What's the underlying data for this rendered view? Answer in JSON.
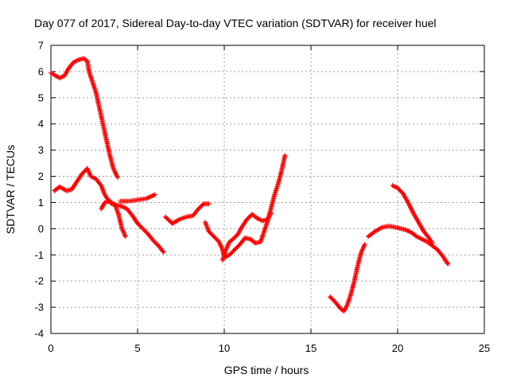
{
  "chart_data": {
    "type": "scatter",
    "title": "Day 077 of 2017, Sidereal Day-to-day VTEC variation (SDTVAR) for receiver huel",
    "xlabel": "GPS time / hours",
    "ylabel": "SDTVAR / TECUs",
    "xlim": [
      0,
      25
    ],
    "ylim": [
      -4,
      7
    ],
    "xticks": [
      "0",
      "5",
      "10",
      "15",
      "20",
      "25"
    ],
    "yticks": [
      "-4",
      "-3",
      "-2",
      "-1",
      "0",
      "1",
      "2",
      "3",
      "4",
      "5",
      "6",
      "7"
    ],
    "grid": true,
    "color": "#ff0000",
    "marker": "plus",
    "series": [
      {
        "values": [
          [
            0.0,
            5.95
          ],
          [
            0.25,
            5.85
          ],
          [
            0.5,
            5.75
          ],
          [
            0.8,
            5.85
          ],
          [
            1.0,
            6.1
          ],
          [
            1.3,
            6.35
          ],
          [
            1.6,
            6.45
          ],
          [
            1.9,
            6.5
          ],
          [
            2.1,
            6.4
          ],
          [
            2.2,
            6.0
          ],
          [
            2.4,
            5.6
          ],
          [
            2.6,
            5.2
          ],
          [
            2.8,
            4.6
          ],
          [
            3.0,
            4.0
          ],
          [
            3.2,
            3.4
          ],
          [
            3.4,
            2.8
          ],
          [
            3.6,
            2.3
          ],
          [
            3.85,
            1.95
          ]
        ]
      },
      {
        "values": [
          [
            0.2,
            1.45
          ],
          [
            0.5,
            1.6
          ],
          [
            0.9,
            1.45
          ],
          [
            1.2,
            1.5
          ],
          [
            1.5,
            1.8
          ],
          [
            1.8,
            2.1
          ],
          [
            2.1,
            2.3
          ],
          [
            2.3,
            2.0
          ],
          [
            2.6,
            1.9
          ],
          [
            2.9,
            1.65
          ],
          [
            3.1,
            1.3
          ],
          [
            3.3,
            1.1
          ],
          [
            3.5,
            0.95
          ],
          [
            3.8,
            0.9
          ],
          [
            4.1,
            0.85
          ],
          [
            4.4,
            0.75
          ],
          [
            4.7,
            0.5
          ],
          [
            5.0,
            0.2
          ],
          [
            5.3,
            0.0
          ],
          [
            5.6,
            -0.2
          ],
          [
            5.9,
            -0.45
          ],
          [
            6.2,
            -0.65
          ],
          [
            6.5,
            -0.9
          ]
        ]
      },
      {
        "values": [
          [
            2.9,
            0.75
          ],
          [
            3.1,
            1.0
          ],
          [
            3.4,
            1.05
          ],
          [
            3.7,
            0.9
          ],
          [
            3.9,
            0.55
          ],
          [
            4.1,
            0.0
          ],
          [
            4.3,
            -0.3
          ]
        ]
      },
      {
        "values": [
          [
            4.0,
            1.05
          ],
          [
            4.5,
            1.05
          ],
          [
            5.0,
            1.1
          ],
          [
            5.5,
            1.15
          ],
          [
            6.0,
            1.3
          ]
        ]
      },
      {
        "values": [
          [
            6.6,
            0.45
          ],
          [
            7.0,
            0.2
          ],
          [
            7.4,
            0.35
          ],
          [
            7.8,
            0.45
          ],
          [
            8.2,
            0.5
          ],
          [
            8.5,
            0.75
          ],
          [
            8.8,
            0.95
          ],
          [
            9.1,
            0.95
          ]
        ]
      },
      {
        "values": [
          [
            8.9,
            0.25
          ],
          [
            9.1,
            -0.1
          ],
          [
            9.4,
            -0.3
          ],
          [
            9.7,
            -0.5
          ],
          [
            9.9,
            -0.8
          ],
          [
            10.0,
            -1.1
          ],
          [
            10.3,
            -1.0
          ],
          [
            10.6,
            -0.8
          ],
          [
            10.9,
            -0.6
          ],
          [
            11.2,
            -0.35
          ],
          [
            11.5,
            -0.4
          ],
          [
            11.8,
            -0.55
          ],
          [
            12.1,
            -0.5
          ],
          [
            12.3,
            -0.1
          ],
          [
            12.5,
            0.3
          ],
          [
            12.7,
            0.8
          ],
          [
            12.9,
            1.3
          ],
          [
            13.1,
            1.7
          ],
          [
            13.3,
            2.2
          ],
          [
            13.5,
            2.8
          ]
        ]
      },
      {
        "values": [
          [
            9.9,
            -1.2
          ],
          [
            10.1,
            -0.8
          ],
          [
            10.3,
            -0.5
          ],
          [
            10.5,
            -0.4
          ],
          [
            10.8,
            -0.2
          ],
          [
            11.0,
            0.05
          ],
          [
            11.3,
            0.35
          ],
          [
            11.6,
            0.55
          ],
          [
            11.9,
            0.4
          ],
          [
            12.2,
            0.3
          ],
          [
            12.5,
            0.35
          ],
          [
            12.7,
            0.6
          ]
        ]
      },
      {
        "values": [
          [
            16.1,
            -2.6
          ],
          [
            16.4,
            -2.8
          ],
          [
            16.7,
            -3.05
          ],
          [
            16.9,
            -3.15
          ],
          [
            17.1,
            -2.9
          ],
          [
            17.3,
            -2.5
          ],
          [
            17.5,
            -2.0
          ],
          [
            17.7,
            -1.4
          ],
          [
            17.9,
            -0.9
          ],
          [
            18.1,
            -0.6
          ]
        ]
      },
      {
        "values": [
          [
            18.3,
            -0.3
          ],
          [
            18.7,
            -0.1
          ],
          [
            19.1,
            0.05
          ],
          [
            19.5,
            0.1
          ],
          [
            19.9,
            0.05
          ],
          [
            20.2,
            0.0
          ],
          [
            20.5,
            -0.05
          ],
          [
            20.8,
            -0.15
          ],
          [
            21.1,
            -0.3
          ],
          [
            21.4,
            -0.4
          ],
          [
            21.7,
            -0.5
          ],
          [
            22.0,
            -0.65
          ],
          [
            22.3,
            -0.8
          ],
          [
            22.6,
            -1.05
          ],
          [
            22.9,
            -1.35
          ]
        ]
      },
      {
        "values": [
          [
            19.7,
            1.65
          ],
          [
            20.0,
            1.55
          ],
          [
            20.3,
            1.35
          ],
          [
            20.6,
            1.0
          ],
          [
            20.9,
            0.6
          ],
          [
            21.2,
            0.25
          ],
          [
            21.5,
            -0.1
          ],
          [
            21.8,
            -0.35
          ],
          [
            22.0,
            -0.55
          ]
        ]
      }
    ]
  }
}
